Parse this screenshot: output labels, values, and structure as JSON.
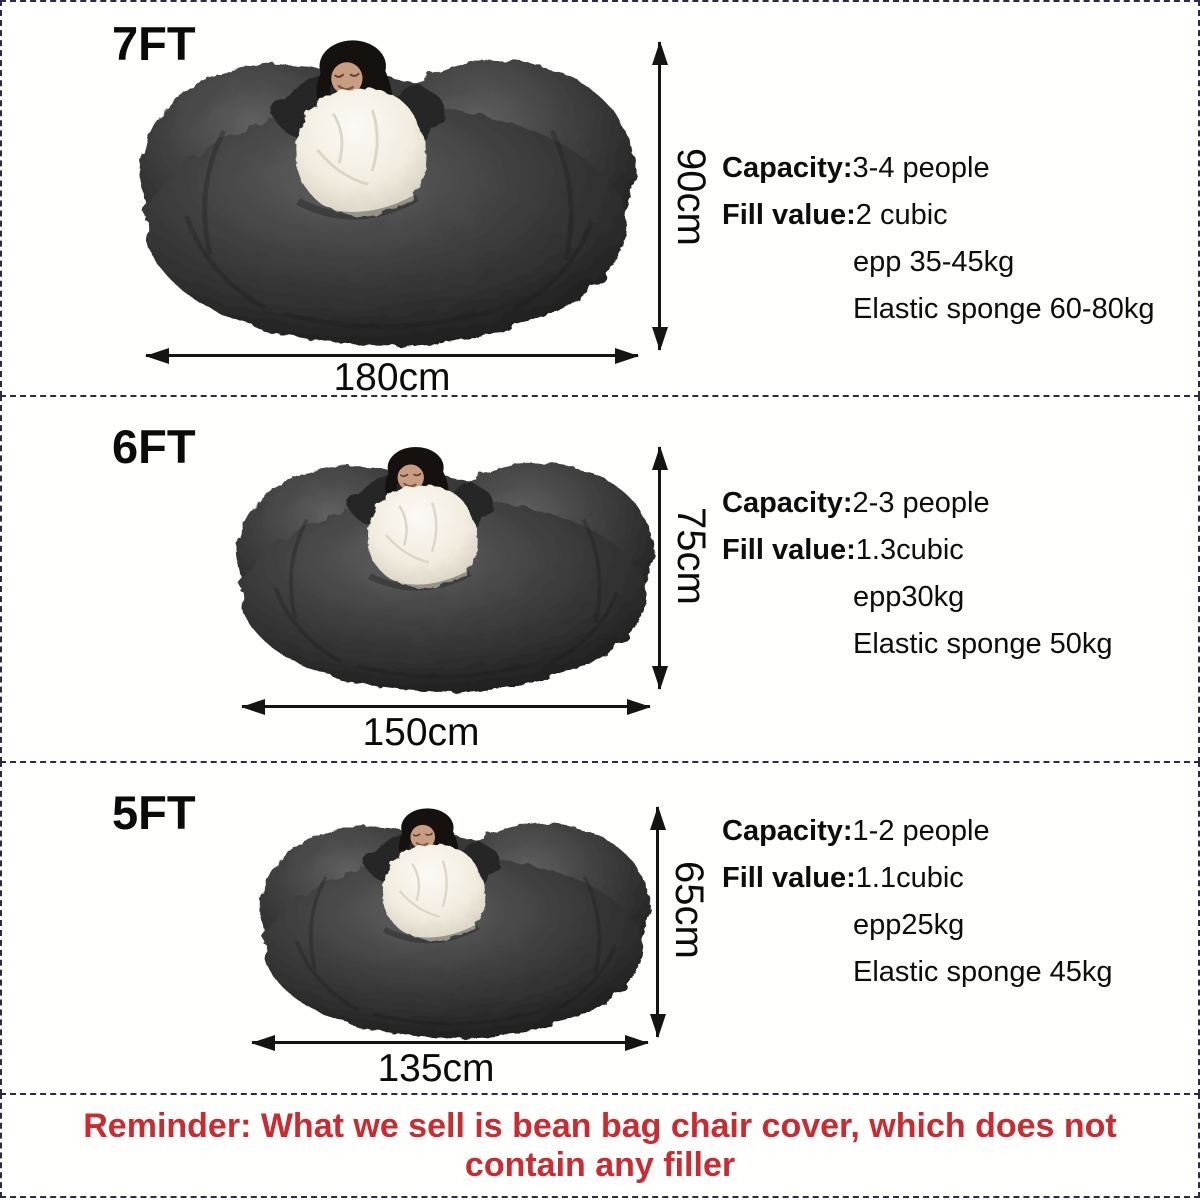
{
  "colors": {
    "border_dash": "#2b2b47",
    "reminder_red": "#cc2a31",
    "bag_dark_gray": "#3a3a3a",
    "blanket_white": "#f3efe6"
  },
  "sections": [
    {
      "size_label": "7FT",
      "height_dim": "90cm",
      "width_dim": "180cm",
      "capacity_label": "Capacity:",
      "capacity_value": "3-4 people",
      "fill_label": "Fill value:",
      "fill_value": "2 cubic",
      "fill_detail_1": "epp 35-45kg",
      "fill_detail_2": "Elastic sponge 60-80kg"
    },
    {
      "size_label": "6FT",
      "height_dim": "75cm",
      "width_dim": "150cm",
      "capacity_label": "Capacity:",
      "capacity_value": "2-3 people",
      "fill_label": "Fill value:",
      "fill_value": "1.3cubic",
      "fill_detail_1": "epp30kg",
      "fill_detail_2": "Elastic sponge 50kg"
    },
    {
      "size_label": "5FT",
      "height_dim": "65cm",
      "width_dim": "135cm",
      "capacity_label": "Capacity:",
      "capacity_value": "1-2 people",
      "fill_label": "Fill value:",
      "fill_value": "1.1cubic",
      "fill_detail_1": "epp25kg",
      "fill_detail_2": "Elastic sponge 45kg"
    }
  ],
  "reminder": {
    "text": "Reminder: What we sell is bean bag chair cover, which does not contain any filler"
  }
}
